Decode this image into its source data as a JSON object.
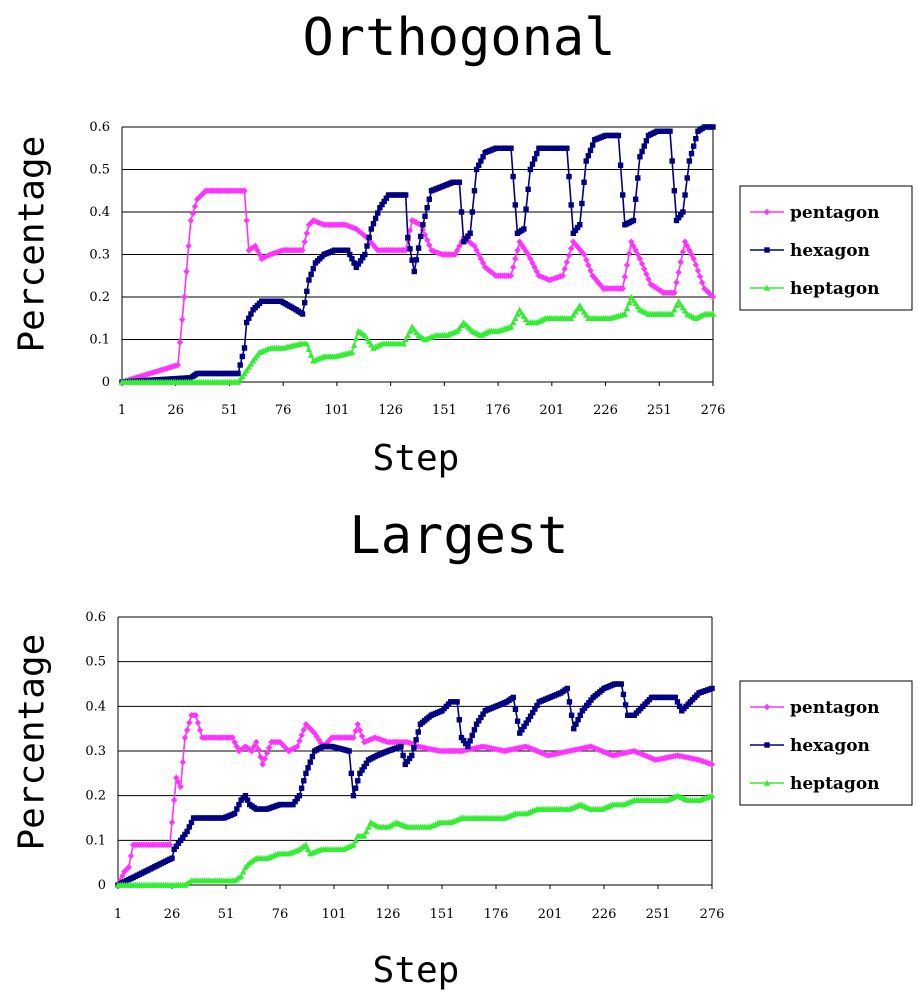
{
  "chart_data": [
    {
      "type": "line",
      "title": "Orthogonal",
      "xlabel": "Step",
      "ylabel": "Percentage",
      "xlim": [
        1,
        276
      ],
      "ylim": [
        0,
        0.6
      ],
      "x_ticks": [
        "1",
        "26",
        "51",
        "76",
        "101",
        "126",
        "151",
        "176",
        "201",
        "226",
        "251",
        "276"
      ],
      "y_ticks": [
        "0",
        "0.1",
        "0.2",
        "0.3",
        "0.4",
        "0.5",
        "0.6"
      ],
      "grid": "horizontal",
      "legend": "right",
      "series": [
        {
          "name": "pentagon",
          "color": "#ff33ff",
          "marker": "diamond",
          "x": [
            1,
            27,
            30,
            33,
            36,
            40,
            50,
            58,
            60,
            63,
            66,
            70,
            76,
            85,
            88,
            90,
            95,
            100,
            105,
            110,
            115,
            120,
            126,
            133,
            136,
            140,
            145,
            150,
            156,
            160,
            165,
            170,
            175,
            182,
            186,
            190,
            195,
            200,
            206,
            211,
            216,
            220,
            225,
            234,
            238,
            242,
            247,
            253,
            258,
            263,
            267,
            272,
            276
          ],
          "y": [
            0,
            0.04,
            0.2,
            0.38,
            0.43,
            0.45,
            0.45,
            0.45,
            0.31,
            0.32,
            0.29,
            0.3,
            0.31,
            0.31,
            0.37,
            0.38,
            0.37,
            0.37,
            0.37,
            0.36,
            0.34,
            0.31,
            0.31,
            0.31,
            0.38,
            0.37,
            0.31,
            0.3,
            0.3,
            0.34,
            0.32,
            0.27,
            0.25,
            0.25,
            0.33,
            0.3,
            0.25,
            0.24,
            0.25,
            0.33,
            0.3,
            0.25,
            0.22,
            0.22,
            0.33,
            0.29,
            0.23,
            0.21,
            0.21,
            0.33,
            0.29,
            0.22,
            0.2
          ]
        },
        {
          "name": "hexagon",
          "color": "#000080",
          "marker": "square",
          "x": [
            1,
            33,
            36,
            55,
            58,
            59,
            62,
            66,
            70,
            75,
            82,
            85,
            88,
            91,
            95,
            100,
            106,
            110,
            114,
            117,
            121,
            125,
            133,
            134,
            137,
            141,
            145,
            155,
            158,
            160,
            163,
            166,
            170,
            175,
            182,
            185,
            188,
            191,
            195,
            200,
            208,
            211,
            214,
            217,
            221,
            226,
            232,
            235,
            239,
            242,
            246,
            250,
            256,
            259,
            262,
            265,
            269,
            272,
            276
          ],
          "y": [
            0,
            0.01,
            0.02,
            0.02,
            0.08,
            0.14,
            0.17,
            0.19,
            0.19,
            0.19,
            0.17,
            0.16,
            0.24,
            0.28,
            0.3,
            0.31,
            0.31,
            0.27,
            0.3,
            0.36,
            0.41,
            0.44,
            0.44,
            0.34,
            0.26,
            0.37,
            0.45,
            0.47,
            0.47,
            0.33,
            0.35,
            0.5,
            0.54,
            0.55,
            0.55,
            0.35,
            0.36,
            0.5,
            0.55,
            0.55,
            0.55,
            0.35,
            0.37,
            0.52,
            0.57,
            0.58,
            0.58,
            0.37,
            0.38,
            0.53,
            0.58,
            0.59,
            0.59,
            0.38,
            0.4,
            0.52,
            0.59,
            0.6,
            0.6
          ]
        },
        {
          "name": "heptagon",
          "color": "#33ee33",
          "marker": "triangle",
          "x": [
            1,
            55,
            58,
            62,
            65,
            70,
            76,
            84,
            87,
            90,
            95,
            100,
            108,
            111,
            114,
            118,
            122,
            126,
            132,
            136,
            139,
            142,
            147,
            152,
            157,
            160,
            164,
            168,
            172,
            176,
            182,
            186,
            190,
            194,
            198,
            204,
            210,
            214,
            218,
            222,
            228,
            235,
            238,
            242,
            246,
            252,
            257,
            260,
            264,
            268,
            272,
            276
          ],
          "y": [
            0,
            0,
            0.02,
            0.05,
            0.07,
            0.08,
            0.08,
            0.09,
            0.09,
            0.05,
            0.06,
            0.06,
            0.07,
            0.12,
            0.11,
            0.08,
            0.09,
            0.09,
            0.09,
            0.13,
            0.11,
            0.1,
            0.11,
            0.11,
            0.12,
            0.14,
            0.12,
            0.11,
            0.12,
            0.12,
            0.13,
            0.17,
            0.14,
            0.14,
            0.15,
            0.15,
            0.15,
            0.18,
            0.15,
            0.15,
            0.15,
            0.16,
            0.2,
            0.17,
            0.16,
            0.16,
            0.16,
            0.19,
            0.16,
            0.15,
            0.16,
            0.16
          ]
        }
      ]
    },
    {
      "type": "line",
      "title": "Largest",
      "xlabel": "Step",
      "ylabel": "Percentage",
      "xlim": [
        1,
        276
      ],
      "ylim": [
        0,
        0.6
      ],
      "x_ticks": [
        "1",
        "26",
        "51",
        "76",
        "101",
        "126",
        "151",
        "176",
        "201",
        "226",
        "251",
        "276"
      ],
      "y_ticks": [
        "0",
        "0.1",
        "0.2",
        "0.3",
        "0.4",
        "0.5",
        "0.6"
      ],
      "grid": "horizontal",
      "legend": "right",
      "series": [
        {
          "name": "pentagon",
          "color": "#ff33ff",
          "marker": "diamond",
          "x": [
            1,
            4,
            6,
            8,
            12,
            20,
            25,
            26,
            28,
            30,
            32,
            35,
            37,
            40,
            50,
            54,
            57,
            60,
            63,
            65,
            68,
            72,
            76,
            80,
            84,
            88,
            92,
            96,
            100,
            105,
            110,
            112,
            115,
            120,
            126,
            135,
            140,
            150,
            160,
            170,
            180,
            190,
            200,
            210,
            220,
            230,
            240,
            250,
            260,
            270,
            276
          ],
          "y": [
            0,
            0.03,
            0.04,
            0.09,
            0.09,
            0.09,
            0.09,
            0.14,
            0.24,
            0.22,
            0.33,
            0.38,
            0.38,
            0.33,
            0.33,
            0.33,
            0.3,
            0.31,
            0.3,
            0.32,
            0.27,
            0.32,
            0.32,
            0.3,
            0.31,
            0.36,
            0.34,
            0.31,
            0.33,
            0.33,
            0.33,
            0.36,
            0.32,
            0.33,
            0.32,
            0.32,
            0.31,
            0.3,
            0.3,
            0.31,
            0.3,
            0.31,
            0.29,
            0.3,
            0.31,
            0.29,
            0.3,
            0.28,
            0.29,
            0.28,
            0.27
          ]
        },
        {
          "name": "hexagon",
          "color": "#000080",
          "marker": "square",
          "x": [
            1,
            26,
            27,
            30,
            33,
            36,
            40,
            50,
            55,
            58,
            60,
            62,
            65,
            70,
            76,
            82,
            85,
            88,
            92,
            96,
            100,
            108,
            110,
            113,
            117,
            121,
            126,
            132,
            134,
            137,
            141,
            146,
            151,
            155,
            158,
            160,
            163,
            167,
            171,
            176,
            181,
            184,
            187,
            191,
            196,
            201,
            206,
            209,
            212,
            216,
            221,
            226,
            231,
            234,
            237,
            240,
            244,
            248,
            254,
            259,
            262,
            266,
            270,
            276
          ],
          "y": [
            0,
            0.06,
            0.08,
            0.1,
            0.12,
            0.15,
            0.15,
            0.15,
            0.16,
            0.19,
            0.2,
            0.18,
            0.17,
            0.17,
            0.18,
            0.18,
            0.2,
            0.25,
            0.3,
            0.31,
            0.31,
            0.3,
            0.2,
            0.25,
            0.28,
            0.29,
            0.3,
            0.31,
            0.27,
            0.29,
            0.36,
            0.38,
            0.39,
            0.41,
            0.41,
            0.33,
            0.31,
            0.36,
            0.39,
            0.4,
            0.41,
            0.42,
            0.34,
            0.37,
            0.41,
            0.42,
            0.43,
            0.44,
            0.35,
            0.39,
            0.42,
            0.44,
            0.45,
            0.45,
            0.38,
            0.38,
            0.4,
            0.42,
            0.42,
            0.42,
            0.39,
            0.41,
            0.43,
            0.44
          ]
        },
        {
          "name": "heptagon",
          "color": "#33ee33",
          "marker": "triangle",
          "x": [
            1,
            32,
            35,
            40,
            50,
            55,
            58,
            60,
            62,
            65,
            70,
            75,
            80,
            85,
            88,
            90,
            95,
            100,
            105,
            110,
            112,
            115,
            118,
            122,
            126,
            130,
            135,
            140,
            145,
            150,
            155,
            160,
            165,
            170,
            175,
            180,
            185,
            190,
            195,
            200,
            205,
            210,
            215,
            220,
            225,
            230,
            235,
            240,
            245,
            250,
            255,
            260,
            265,
            270,
            276
          ],
          "y": [
            0,
            0,
            0.01,
            0.01,
            0.01,
            0.01,
            0.02,
            0.04,
            0.05,
            0.06,
            0.06,
            0.07,
            0.07,
            0.08,
            0.09,
            0.07,
            0.08,
            0.08,
            0.08,
            0.09,
            0.11,
            0.11,
            0.14,
            0.13,
            0.13,
            0.14,
            0.13,
            0.13,
            0.13,
            0.14,
            0.14,
            0.15,
            0.15,
            0.15,
            0.15,
            0.15,
            0.16,
            0.16,
            0.17,
            0.17,
            0.17,
            0.17,
            0.18,
            0.17,
            0.17,
            0.18,
            0.18,
            0.19,
            0.19,
            0.19,
            0.19,
            0.2,
            0.19,
            0.19,
            0.2
          ]
        }
      ]
    }
  ]
}
